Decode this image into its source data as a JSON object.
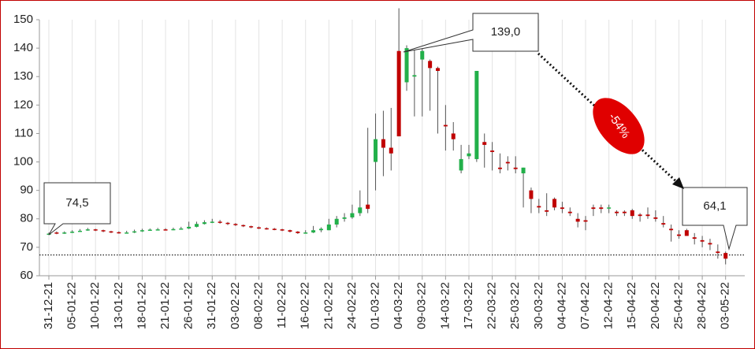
{
  "chart_data": {
    "type": "candlestick",
    "categories": [
      "31-12-21",
      null,
      null,
      "05-01-22",
      null,
      null,
      "10-01-22",
      null,
      null,
      "13-01-22",
      null,
      null,
      "18-01-22",
      null,
      null,
      "21-01-22",
      null,
      null,
      "26-01-22",
      null,
      null,
      "31-01-22",
      null,
      null,
      "03-02-22",
      null,
      null,
      "08-02-22",
      null,
      null,
      "11-02-22",
      null,
      null,
      "16-02-22",
      null,
      null,
      "21-02-22",
      null,
      null,
      "24-02-22",
      null,
      null,
      "01-03-22",
      null,
      null,
      "04-03-22",
      null,
      null,
      "09-03-22",
      null,
      null,
      "14-03-22",
      null,
      null,
      "17-03-22",
      null,
      null,
      "22-03-22",
      null,
      null,
      "25-03-22",
      null,
      null,
      "30-03-22",
      null,
      null,
      "04-04-22",
      null,
      null,
      "07-04-22",
      null,
      null,
      "12-04-22",
      null,
      null,
      "15-04-22",
      null,
      null,
      "20-04-22",
      null,
      null,
      "25-04-22",
      null,
      null,
      "28-04-22",
      null,
      null,
      "03-05-22"
    ],
    "open": [
      74.5,
      75.2,
      75.0,
      75.3,
      75.6,
      76.0,
      76.3,
      76.0,
      75.6,
      75.3,
      75.0,
      75.2,
      75.6,
      76.0,
      76.2,
      76.3,
      76.2,
      76.4,
      76.6,
      77.2,
      78.2,
      78.8,
      79.0,
      78.6,
      78.2,
      77.8,
      77.4,
      77.0,
      76.7,
      76.5,
      76.3,
      76.0,
      75.5,
      75.0,
      75.2,
      76.0,
      76.0,
      78.0,
      80.0,
      80.5,
      82.0,
      85.0,
      100,
      108,
      105,
      139.0,
      128,
      130,
      136,
      135.5,
      133,
      113,
      110,
      97,
      102,
      101,
      107,
      104,
      98,
      100,
      98,
      96,
      90,
      84.5,
      83,
      87,
      84,
      82.5,
      80,
      79.5,
      84,
      84,
      84,
      82.5,
      82.5,
      83,
      81.5,
      81.5,
      80.5,
      78.5,
      76.5,
      74.5,
      76,
      73.5,
      72.5,
      71.5,
      68.5,
      68
    ],
    "high": [
      75.2,
      75.6,
      75.6,
      76.0,
      76.4,
      76.8,
      76.5,
      76.2,
      75.8,
      75.6,
      75.8,
      76.2,
      76.5,
      76.6,
      76.8,
      76.7,
      76.9,
      77.2,
      79.0,
      79.0,
      79.5,
      80.0,
      79.6,
      78.9,
      78.5,
      78.0,
      77.6,
      77.3,
      77.0,
      76.8,
      76.5,
      76.2,
      75.7,
      76.0,
      77.5,
      77.0,
      80.0,
      81.0,
      82.0,
      85.0,
      90.0,
      112,
      117,
      118,
      119,
      154,
      141,
      140,
      140,
      136,
      133.5,
      120,
      114,
      106,
      106,
      132,
      110,
      107,
      103,
      102,
      102,
      98,
      91,
      87,
      89,
      87.5,
      86,
      84,
      82,
      81,
      85,
      85,
      85,
      83,
      83,
      83.5,
      82,
      84,
      83,
      81,
      78,
      76,
      76.5,
      75,
      74,
      73,
      71,
      68.5
    ],
    "low": [
      74.3,
      74.6,
      74.7,
      75.0,
      75.4,
      75.8,
      75.7,
      75.3,
      75.0,
      74.8,
      74.9,
      75.0,
      75.4,
      75.8,
      76.0,
      75.9,
      76.0,
      76.2,
      76.4,
      77.0,
      78.0,
      78.5,
      78.3,
      77.8,
      77.5,
      77.1,
      76.7,
      76.4,
      76.2,
      76.0,
      75.7,
      75.2,
      74.7,
      74.8,
      75.0,
      75.3,
      76.0,
      77.0,
      79.0,
      80.0,
      81.0,
      82,
      90,
      95,
      97,
      109,
      125,
      116,
      116,
      118,
      110,
      104,
      104,
      96,
      101,
      100,
      98,
      97,
      96,
      97,
      96,
      84,
      82,
      82,
      81,
      83,
      82,
      81,
      77,
      76,
      81,
      82,
      82,
      81,
      81,
      80,
      79,
      80,
      79,
      77,
      72,
      73,
      74,
      71,
      70,
      69,
      66,
      64
    ],
    "close": [
      74.8,
      75.0,
      75.2,
      75.5,
      75.8,
      76.3,
      76.0,
      75.6,
      75.3,
      75.0,
      75.2,
      75.6,
      76.0,
      76.2,
      76.3,
      76.2,
      76.4,
      76.6,
      77.2,
      78.2,
      78.8,
      79.0,
      78.6,
      78.2,
      77.8,
      77.4,
      77.0,
      76.7,
      76.5,
      76.3,
      76.0,
      75.5,
      75.0,
      75.2,
      76.0,
      76.5,
      78.0,
      80.0,
      80.5,
      82.0,
      84.0,
      83.5,
      108,
      105,
      103,
      109,
      140,
      130.5,
      139,
      133,
      132,
      112.5,
      108,
      101,
      103,
      132,
      106,
      103.5,
      97.5,
      99.5,
      97.5,
      98,
      87,
      84,
      82.5,
      84,
      83.5,
      82,
      79,
      79,
      83.5,
      83.5,
      84,
      82,
      82,
      81,
      81,
      81,
      80,
      78,
      76,
      74,
      74,
      73,
      72,
      71,
      68,
      66
    ],
    "up_color": "#22b04a",
    "down_color": "#c00000",
    "ylim": [
      60,
      150
    ],
    "yticks": [
      60,
      70,
      80,
      90,
      100,
      110,
      120,
      130,
      140,
      150
    ],
    "reference_line": 67.3,
    "annotations": [
      {
        "text": "74,5"
      },
      {
        "text": "139,0"
      },
      {
        "text": "64,1"
      },
      {
        "text": "-54%"
      }
    ]
  }
}
